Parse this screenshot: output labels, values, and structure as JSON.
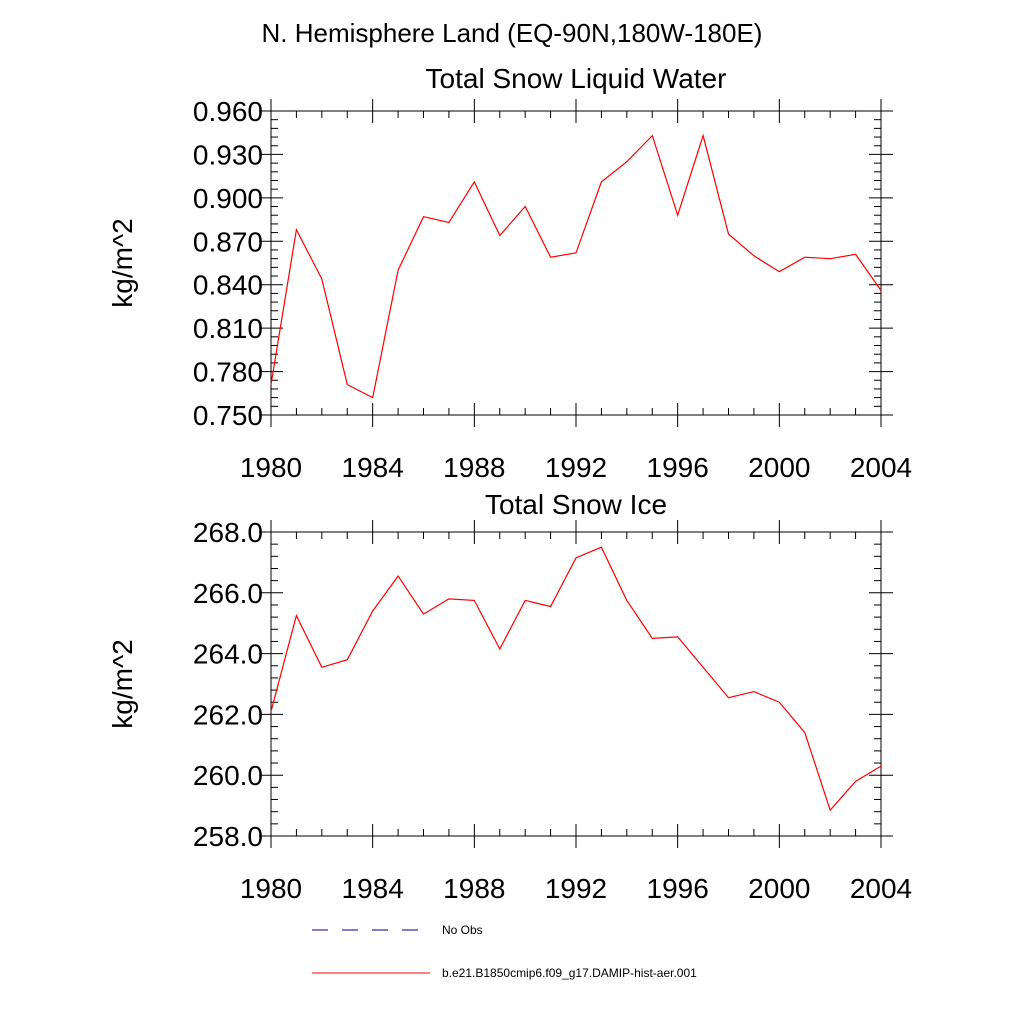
{
  "header": {
    "region": "N. Hemisphere Land (EQ-90N,180W-180E)"
  },
  "chart_data": [
    {
      "type": "line",
      "title": "Total Snow Liquid Water",
      "ylabel": "kg/m^2",
      "xlabel": "",
      "xlim": [
        1980,
        2004
      ],
      "ylim": [
        0.75,
        0.96
      ],
      "xticks": [
        "1980",
        "1984",
        "1988",
        "1992",
        "1996",
        "2000",
        "2004"
      ],
      "yticks": [
        "0.750",
        "0.780",
        "0.810",
        "0.840",
        "0.870",
        "0.900",
        "0.930",
        "0.960"
      ],
      "grid": false,
      "series": [
        {
          "name": "b.e21.B1850cmip6.f09_g17.DAMIP-hist-aer.001",
          "color": "#ff0000",
          "x": [
            1980,
            1981,
            1982,
            1983,
            1984,
            1985,
            1986,
            1987,
            1988,
            1989,
            1990,
            1991,
            1992,
            1993,
            1994,
            1995,
            1996,
            1997,
            1998,
            1999,
            2000,
            2001,
            2002,
            2003,
            2004
          ],
          "y": [
            0.771,
            0.878,
            0.844,
            0.771,
            0.762,
            0.85,
            0.887,
            0.883,
            0.911,
            0.874,
            0.894,
            0.859,
            0.862,
            0.911,
            0.925,
            0.943,
            0.888,
            0.943,
            0.875,
            0.86,
            0.849,
            0.859,
            0.858,
            0.861,
            0.836
          ]
        }
      ]
    },
    {
      "type": "line",
      "title": "Total Snow Ice",
      "ylabel": "kg/m^2",
      "xlabel": "",
      "xlim": [
        1980,
        2004
      ],
      "ylim": [
        258.0,
        268.0
      ],
      "xticks": [
        "1980",
        "1984",
        "1988",
        "1992",
        "1996",
        "2000",
        "2004"
      ],
      "yticks": [
        "258.0",
        "260.0",
        "262.0",
        "264.0",
        "266.0",
        "268.0"
      ],
      "grid": false,
      "series": [
        {
          "name": "b.e21.B1850cmip6.f09_g17.DAMIP-hist-aer.001",
          "color": "#ff0000",
          "x": [
            1980,
            1981,
            1982,
            1983,
            1984,
            1985,
            1986,
            1987,
            1988,
            1989,
            1990,
            1991,
            1992,
            1993,
            1994,
            1995,
            1996,
            1997,
            1998,
            1999,
            2000,
            2001,
            2002,
            2003,
            2004
          ],
          "y": [
            262.1,
            265.25,
            263.55,
            263.8,
            265.4,
            266.55,
            265.3,
            265.8,
            265.75,
            264.15,
            265.75,
            265.55,
            267.15,
            267.5,
            265.75,
            264.5,
            264.55,
            263.55,
            262.55,
            262.75,
            262.4,
            261.4,
            258.85,
            259.8,
            260.3
          ]
        }
      ]
    }
  ],
  "legend": {
    "items": [
      {
        "label": "No Obs",
        "color": "#000080",
        "dash": "dashed"
      },
      {
        "label": "b.e21.B1850cmip6.f09_g17.DAMIP-hist-aer.001",
        "color": "#ff0000",
        "dash": "solid"
      }
    ]
  }
}
